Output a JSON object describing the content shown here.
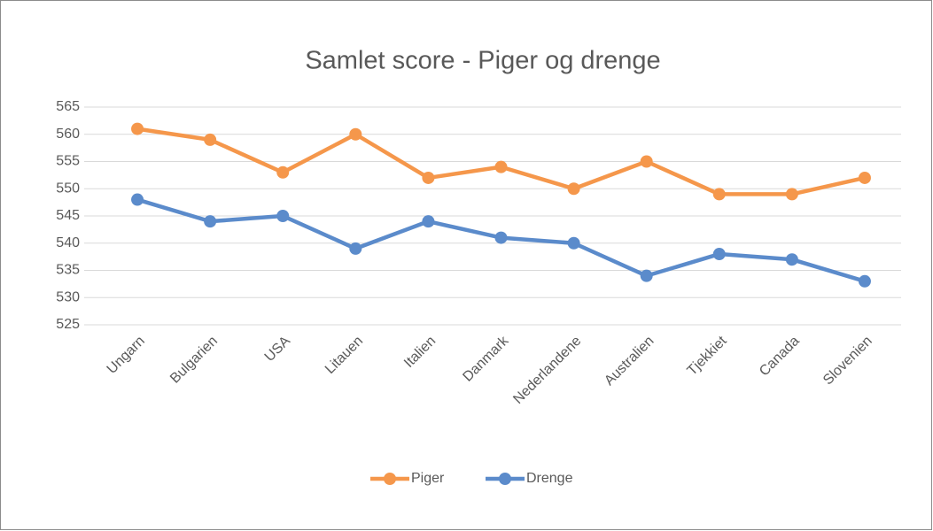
{
  "chart_data": {
    "type": "line",
    "title": "Samlet score - Piger og drenge",
    "categories": [
      "Ungarn",
      "Bulgarien",
      "USA",
      "Litauen",
      "Italien",
      "Danmark",
      "Nederlandene",
      "Australien",
      "Tjekkiet",
      "Canada",
      "Slovenien"
    ],
    "series": [
      {
        "name": "Piger",
        "color": "#f5974b",
        "values": [
          561,
          559,
          553,
          560,
          552,
          554,
          550,
          555,
          549,
          549,
          552
        ]
      },
      {
        "name": "Drenge",
        "color": "#5b8bcb",
        "values": [
          548,
          544,
          545,
          539,
          544,
          541,
          540,
          534,
          538,
          537,
          533
        ]
      }
    ],
    "ylim": [
      525,
      565
    ],
    "yticks": [
      525,
      530,
      535,
      540,
      545,
      550,
      555,
      560,
      565
    ],
    "grid": true,
    "legend": "bottom"
  }
}
